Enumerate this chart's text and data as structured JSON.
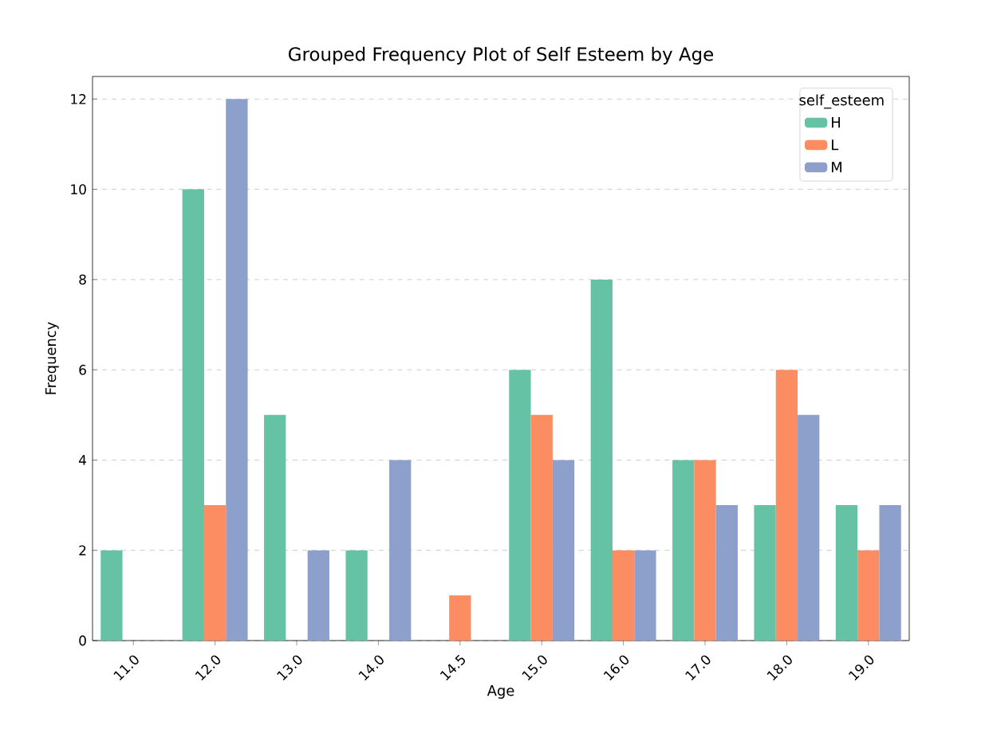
{
  "chart_data": {
    "type": "bar",
    "title": "Grouped Frequency Plot of Self Esteem by Age",
    "xlabel": "Age",
    "ylabel": "Frequency",
    "legend_title": "self_esteem",
    "categories": [
      "11.0",
      "12.0",
      "13.0",
      "14.0",
      "14.5",
      "15.0",
      "16.0",
      "17.0",
      "18.0",
      "19.0"
    ],
    "series": [
      {
        "name": "H",
        "color": "#66c2a5",
        "values": [
          2,
          10,
          5,
          2,
          0,
          6,
          8,
          4,
          3,
          3
        ]
      },
      {
        "name": "L",
        "color": "#fc8d62",
        "values": [
          0,
          3,
          0,
          0,
          1,
          5,
          2,
          4,
          6,
          2
        ]
      },
      {
        "name": "M",
        "color": "#8da0cb",
        "values": [
          0,
          12,
          2,
          4,
          0,
          4,
          2,
          3,
          5,
          3
        ]
      }
    ],
    "ylim": [
      0,
      12.5
    ],
    "yticks": [
      0,
      2,
      4,
      6,
      8,
      10,
      12
    ],
    "grid": "y",
    "legend": "top right"
  }
}
